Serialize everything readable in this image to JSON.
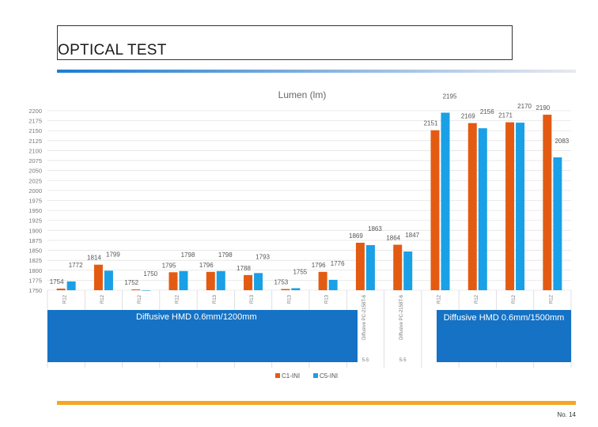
{
  "slide": {
    "title": "OPTICAL TEST",
    "page_number": "No. 14",
    "overlay_left": "Diffusive HMD  0.6mm/1200mm",
    "overlay_right": "Diffusive HMD 0.6mm/1500mm"
  },
  "colors": {
    "series1": "#e35b12",
    "series2": "#1aa0e6",
    "overlay": "#1572c4",
    "rule_top_start": "#1d7ccf",
    "rule_top_end": "#e8e8f0",
    "rule_bottom": "#f5a623"
  },
  "chart_data": {
    "type": "bar",
    "title": "Lumen (lm)",
    "ylim": [
      1750,
      2200
    ],
    "yticks": [
      2200,
      2175,
      2150,
      2125,
      2100,
      2075,
      2050,
      2025,
      2000,
      1975,
      1950,
      1925,
      1900,
      1875,
      1850,
      1825,
      1800,
      1775,
      1750
    ],
    "categories": [
      "R12",
      "R12",
      "R12",
      "R12",
      "R13",
      "R13",
      "R13",
      "R13",
      "Diffusive PC-2158T-6",
      "Diffusive PC-2158T-6",
      "R12",
      "R12",
      "R12",
      "R12"
    ],
    "category_sub_labels": [
      "",
      "",
      "",
      "",
      "",
      "",
      "",
      "",
      "5-5",
      "5-5",
      "",
      "",
      "",
      ""
    ],
    "series": [
      {
        "name": "C1-INI",
        "values": [
          1754,
          1814,
          1752,
          1795,
          1796,
          1788,
          1753,
          1796,
          1869,
          1864,
          2151,
          2169,
          2171,
          2190
        ]
      },
      {
        "name": "C5-INI",
        "values": [
          1772,
          1799,
          1750,
          1798,
          1798,
          1793,
          1755,
          1776,
          1863,
          1847,
          2195,
          2156,
          2170,
          2083
        ]
      }
    ],
    "legend": "bottom-center",
    "grid": true
  }
}
